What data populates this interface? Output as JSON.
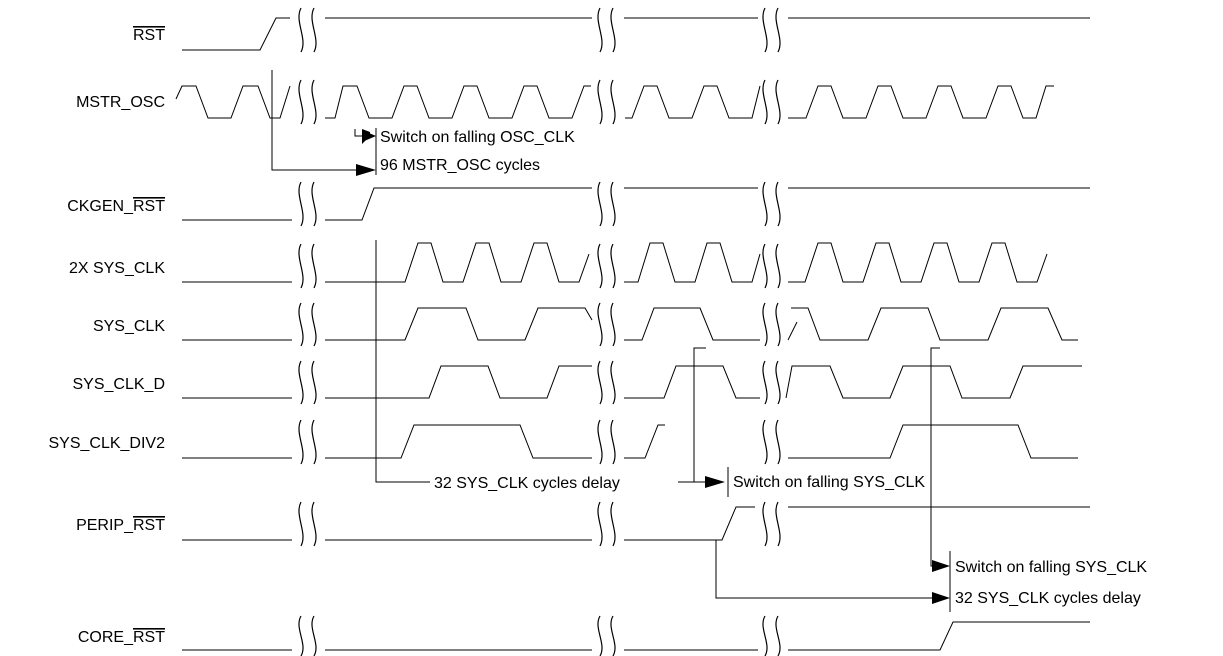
{
  "signals": [
    {
      "id": "rst",
      "prefix": "",
      "overbar": "RST"
    },
    {
      "id": "mstr-osc",
      "prefix": "MSTR_OSC",
      "overbar": ""
    },
    {
      "id": "ckgen-rst",
      "prefix": "CKGEN_",
      "overbar": "RST"
    },
    {
      "id": "2x-sys-clk",
      "prefix": "2X SYS_CLK",
      "overbar": ""
    },
    {
      "id": "sys-clk",
      "prefix": "SYS_CLK",
      "overbar": ""
    },
    {
      "id": "sys-clk-d",
      "prefix": "SYS_CLK_D",
      "overbar": ""
    },
    {
      "id": "sys-clk-div2",
      "prefix": "SYS_CLK_DIV2",
      "overbar": ""
    },
    {
      "id": "perip-rst",
      "prefix": "PERIP_",
      "overbar": "RST"
    },
    {
      "id": "core-rst",
      "prefix": "CORE_",
      "overbar": "RST"
    }
  ],
  "annotations": {
    "switch_osc": "Switch on falling OSC_CLK",
    "mstr_cycles": "96 MSTR_OSC cycles",
    "sys_delay": "32 SYS_CLK cycles delay",
    "switch_sys": "Switch on falling SYS_CLK",
    "switch_sys_2": "Switch on falling SYS_CLK",
    "sys_delay_2": "32 SYS_CLK cycles delay"
  }
}
